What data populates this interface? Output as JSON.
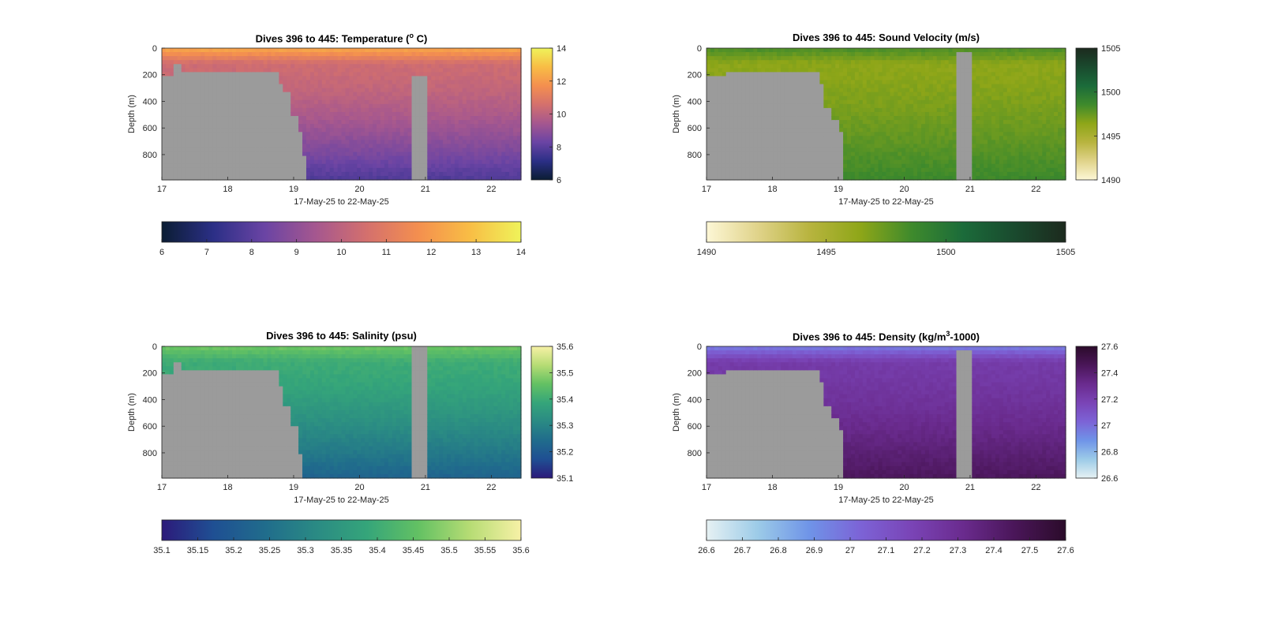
{
  "chart_data": [
    {
      "type": "heatmap",
      "title_pre": "Dives 396 to 445: Temperature (",
      "title_sup": "o",
      "title_post": " C)",
      "xlabel": "17-May-25 to 22-May-25",
      "ylabel": "Depth (m)",
      "xlim": [
        17,
        22.45
      ],
      "ylim": [
        0,
        990
      ],
      "y_reversed": true,
      "xticks": [
        17,
        18,
        19,
        20,
        21,
        22
      ],
      "yticks": [
        0,
        200,
        400,
        600,
        800
      ],
      "colormap": [
        "#0b1d33",
        "#2b2f86",
        "#6a44a4",
        "#a5578f",
        "#d4706d",
        "#f48f4f",
        "#f8bd45",
        "#eff35a"
      ],
      "clim": [
        6,
        14
      ],
      "vertical_colorbar_ticks": [
        "6",
        "8",
        "10",
        "12",
        "14"
      ],
      "horizontal_colorbar_ticks": [
        "6",
        "7",
        "8",
        "9",
        "10",
        "11",
        "12",
        "13",
        "14"
      ],
      "surface_value": 12.4,
      "mid_value": 10.4,
      "deep_value": 7.8,
      "seabed_depth_m": [
        [
          17,
          200
        ],
        [
          17.2,
          130
        ],
        [
          17.3,
          175
        ],
        [
          17.5,
          190
        ],
        [
          18.2,
          180
        ],
        [
          18.7,
          180
        ],
        [
          18.75,
          260
        ],
        [
          18.85,
          330
        ],
        [
          18.95,
          510
        ],
        [
          19.05,
          630
        ],
        [
          19.15,
          800
        ],
        [
          19.2,
          990
        ]
      ],
      "data_gap_x": [
        20.8,
        21.05
      ]
    },
    {
      "type": "heatmap",
      "title_pre": "Dives 396 to 445: Sound Velocity (m/s)",
      "title_sup": "",
      "title_post": "",
      "xlabel": "17-May-25 to 22-May-25",
      "ylabel": "Depth (m)",
      "xlim": [
        17,
        22.45
      ],
      "ylim": [
        0,
        990
      ],
      "y_reversed": true,
      "xticks": [
        17,
        18,
        19,
        20,
        21,
        22
      ],
      "yticks": [
        0,
        200,
        400,
        600,
        800
      ],
      "colormap": [
        "#fdf7d6",
        "#e0d38a",
        "#b8b43f",
        "#8ea618",
        "#3e8a2c",
        "#1b6b3a",
        "#1a4a2e",
        "#1c2a1e"
      ],
      "clim": [
        1490,
        1505
      ],
      "vertical_colorbar_ticks": [
        "1490",
        "1495",
        "1500",
        "1505"
      ],
      "horizontal_colorbar_ticks": [
        "1490",
        "1495",
        "1500",
        "1505"
      ],
      "surface_value": 1498.3,
      "mid_value": 1496.4,
      "deep_value": 1498.7,
      "seabed_depth_m": [
        [
          17,
          200
        ],
        [
          17.3,
          175
        ],
        [
          17.5,
          190
        ],
        [
          18.3,
          180
        ],
        [
          18.65,
          180
        ],
        [
          18.7,
          270
        ],
        [
          18.8,
          440
        ],
        [
          18.9,
          530
        ],
        [
          19.0,
          640
        ],
        [
          19.1,
          990
        ]
      ],
      "data_gap_x": [
        20.8,
        21.05
      ]
    },
    {
      "type": "heatmap",
      "title_pre": "Dives 396 to 445: Salinity (psu)",
      "title_sup": "",
      "title_post": "",
      "xlabel": "17-May-25 to 22-May-25",
      "ylabel": "Depth (m)",
      "xlim": [
        17,
        22.45
      ],
      "ylim": [
        0,
        990
      ],
      "y_reversed": true,
      "xticks": [
        17,
        18,
        19,
        20,
        21,
        22
      ],
      "yticks": [
        0,
        200,
        400,
        600,
        800
      ],
      "colormap": [
        "#2c1a7a",
        "#1f4f93",
        "#206c8c",
        "#2a8a84",
        "#35a57a",
        "#63c163",
        "#b6dc74",
        "#f7f1a6"
      ],
      "clim": [
        35.1,
        35.6
      ],
      "vertical_colorbar_ticks": [
        "35.1",
        "35.2",
        "35.3",
        "35.4",
        "35.5",
        "35.6"
      ],
      "horizontal_colorbar_ticks": [
        "35.1",
        "35.15",
        "35.2",
        "35.25",
        "35.3",
        "35.35",
        "35.4",
        "35.45",
        "35.5",
        "35.55",
        "35.6"
      ],
      "surface_value": 35.47,
      "mid_value": 35.4,
      "deep_value": 35.22,
      "seabed_depth_m": [
        [
          17,
          200
        ],
        [
          17.2,
          130
        ],
        [
          17.3,
          175
        ],
        [
          17.5,
          190
        ],
        [
          18.2,
          180
        ],
        [
          18.7,
          180
        ],
        [
          18.75,
          300
        ],
        [
          18.85,
          460
        ],
        [
          18.95,
          600
        ],
        [
          19.05,
          800
        ],
        [
          19.15,
          990
        ]
      ],
      "data_gap_x": [
        20.8,
        21.05
      ]
    },
    {
      "type": "heatmap",
      "title_pre": "Dives 396 to 445: Density (kg/m",
      "title_sup": "3",
      "title_post": "-1000)",
      "xlabel": "17-May-25 to 22-May-25",
      "ylabel": "Depth (m)",
      "xlim": [
        17,
        22.45
      ],
      "ylim": [
        0,
        990
      ],
      "y_reversed": true,
      "xticks": [
        17,
        18,
        19,
        20,
        21,
        22
      ],
      "yticks": [
        0,
        200,
        400,
        600,
        800
      ],
      "colormap": [
        "#e6f1f3",
        "#9ccbe8",
        "#6f94e8",
        "#7c63d6",
        "#7a44b6",
        "#6a2b8e",
        "#4a1659",
        "#2b0b2a"
      ],
      "clim": [
        26.6,
        27.6
      ],
      "vertical_colorbar_ticks": [
        "26.6",
        "26.8",
        "27",
        "27.2",
        "27.4",
        "27.6"
      ],
      "horizontal_colorbar_ticks": [
        "26.6",
        "26.7",
        "26.8",
        "26.9",
        "27",
        "27.1",
        "27.2",
        "27.3",
        "27.4",
        "27.5",
        "27.6"
      ],
      "surface_value": 26.95,
      "mid_value": 27.22,
      "deep_value": 27.45,
      "seabed_depth_m": [
        [
          17,
          200
        ],
        [
          17.3,
          175
        ],
        [
          17.5,
          190
        ],
        [
          18.3,
          180
        ],
        [
          18.65,
          180
        ],
        [
          18.7,
          270
        ],
        [
          18.8,
          440
        ],
        [
          18.9,
          530
        ],
        [
          19.0,
          640
        ],
        [
          19.1,
          990
        ]
      ],
      "data_gap_x": [
        20.8,
        21.05
      ]
    }
  ]
}
